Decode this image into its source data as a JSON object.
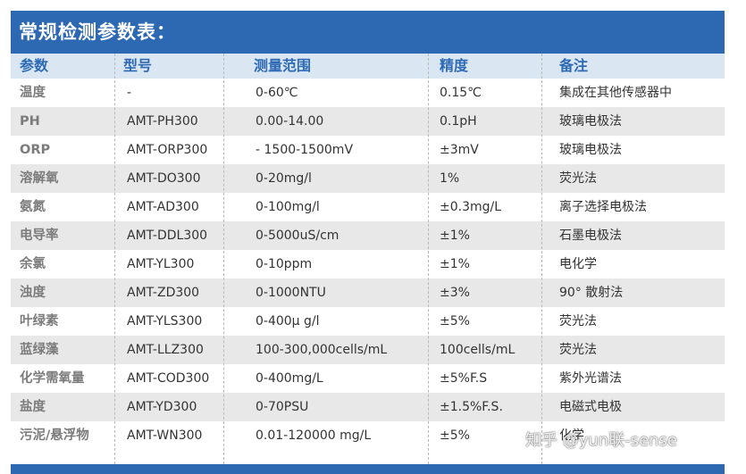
{
  "title": "常规检测参数表：",
  "headers": [
    "参数",
    "型号",
    "测量范围",
    "精度",
    "备注"
  ],
  "rows": [
    [
      "温度",
      "-",
      "0-60℃",
      "0.15℃",
      "集成在其他传感器中"
    ],
    [
      "PH",
      "AMT-PH300",
      "0.00-14.00",
      "0.1pH",
      "玻璃电极法"
    ],
    [
      "ORP",
      "AMT-ORP300",
      " - 1500-1500mV",
      "±3mV",
      "玻璃电极法"
    ],
    [
      "溶解氧",
      "AMT-DO300",
      "0-20mg/l",
      "1%",
      "荧光法"
    ],
    [
      "氨氮",
      "AMT-AD300",
      "0-100mg/l",
      "±0.3mg/L",
      "离子选择电极法"
    ],
    [
      "电导率",
      "AMT-DDL300",
      "0-5000uS/cm",
      "±1%",
      "石墨电极法"
    ],
    [
      "余氯",
      "AMT-YL300",
      "0-10ppm",
      "±1%",
      "电化学"
    ],
    [
      "浊度",
      "AMT-ZD300",
      "0-1000NTU",
      "±3%",
      "90° 散射法"
    ],
    [
      "叶绿素",
      "AMT-YLS300",
      "0-400μ g/l",
      "±5%",
      "荧光法"
    ],
    [
      "蓝绿藻",
      "AMT-LLZ300",
      "100-300,000cells/mL",
      "100cells/mL",
      "荧光法"
    ],
    [
      "化学需氧量",
      "AMT-COD300",
      "0-400mg/L",
      "±5%F.S",
      "紫外光谱法"
    ],
    [
      "盐度",
      "AMT-YD300",
      "0-70PSU",
      "±1.5%F.S.",
      "电磁式电极"
    ],
    [
      "污泥/悬浮物",
      "AMT-WN300",
      "0.01-120000 mg/L",
      "±5%",
      "化学"
    ]
  ],
  "watermark": "知乎 @yun联-sense",
  "colors": {
    "accent": "#2d69b3",
    "header_bg": "#dbe6f3",
    "header_text": "#2d6ab4",
    "stripe": "#e8e8e8"
  }
}
